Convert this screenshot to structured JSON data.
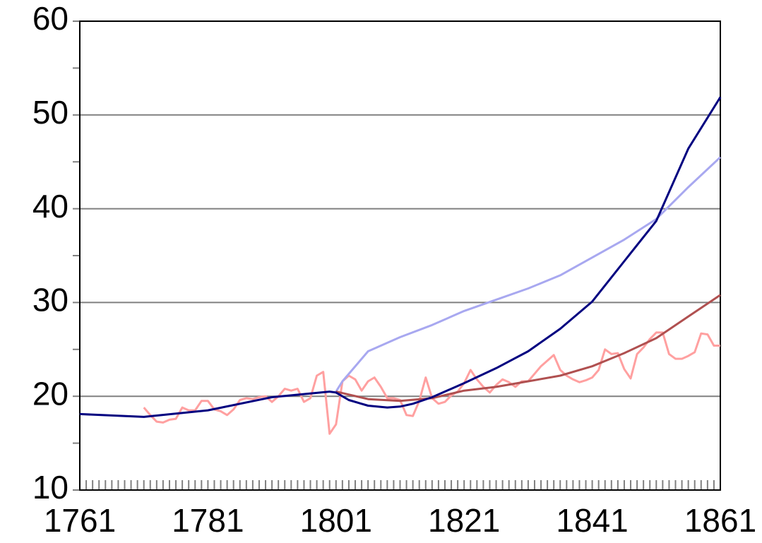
{
  "chart_data": {
    "type": "line",
    "xlim": [
      1761,
      1861
    ],
    "xticks": [
      1761,
      1781,
      1801,
      1821,
      1841,
      1861
    ],
    "xminor_ticks": [
      1761,
      1762,
      1763,
      1764,
      1765,
      1766,
      1767,
      1768,
      1769,
      1770,
      1771,
      1772,
      1773,
      1774,
      1775,
      1776,
      1777,
      1778,
      1779,
      1780,
      1781,
      1782,
      1783,
      1784,
      1785,
      1786,
      1787,
      1788,
      1789,
      1790,
      1791,
      1792,
      1793,
      1794,
      1795,
      1796,
      1797,
      1798,
      1799,
      1800,
      1801,
      1802,
      1803,
      1804,
      1805,
      1806,
      1807,
      1808,
      1809,
      1810,
      1811,
      1812,
      1813,
      1814,
      1815,
      1816,
      1817,
      1818,
      1819,
      1820,
      1821,
      1822,
      1823,
      1824,
      1825,
      1826,
      1827,
      1828,
      1829,
      1830,
      1831,
      1832,
      1833,
      1834,
      1835,
      1836,
      1837,
      1838,
      1839,
      1840,
      1841,
      1842,
      1843,
      1844,
      1845,
      1846,
      1847,
      1848,
      1849,
      1850,
      1851,
      1852,
      1853,
      1854,
      1855,
      1856,
      1857,
      1858,
      1859,
      1860,
      1861
    ],
    "ylim": [
      10,
      60
    ],
    "yticks": [
      10,
      20,
      30,
      40,
      50,
      60
    ],
    "yminor_ticks": [
      15,
      25,
      35,
      45,
      55
    ],
    "grid": true,
    "series": [
      {
        "color": "#ffa0a0",
        "x": [
          1771,
          1772,
          1773,
          1774,
          1775,
          1776,
          1777,
          1778,
          1779,
          1780,
          1781,
          1782,
          1783,
          1784,
          1785,
          1786,
          1787,
          1788,
          1789,
          1790,
          1791,
          1792,
          1793,
          1794,
          1795,
          1796,
          1797,
          1798,
          1799,
          1800,
          1801,
          1802,
          1803,
          1804,
          1805,
          1806,
          1807,
          1808,
          1809,
          1810,
          1811,
          1812,
          1813,
          1814,
          1815,
          1816,
          1817,
          1818,
          1819,
          1820,
          1821,
          1822,
          1823,
          1824,
          1825,
          1826,
          1827,
          1828,
          1829,
          1830,
          1831,
          1832,
          1833,
          1834,
          1835,
          1836,
          1837,
          1838,
          1839,
          1840,
          1841,
          1842,
          1843,
          1844,
          1845,
          1846,
          1847,
          1848,
          1849,
          1850,
          1851,
          1852,
          1853,
          1854,
          1855,
          1856,
          1857,
          1858,
          1859,
          1860,
          1861
        ],
        "values": [
          18.8,
          18.0,
          17.3,
          17.2,
          17.5,
          17.6,
          18.8,
          18.5,
          18.5,
          19.5,
          19.5,
          18.6,
          18.4,
          18.0,
          18.6,
          19.6,
          19.8,
          19.7,
          19.9,
          20.0,
          19.4,
          20.0,
          20.8,
          20.6,
          20.8,
          19.4,
          19.8,
          22.2,
          22.6,
          16.0,
          17.0,
          21.6,
          22.2,
          21.8,
          20.6,
          21.6,
          22.0,
          21.0,
          19.8,
          19.8,
          19.6,
          18.0,
          17.9,
          19.5,
          22.0,
          19.8,
          19.2,
          19.4,
          20.1,
          20.5,
          21.4,
          22.8,
          21.8,
          21.0,
          20.4,
          21.2,
          21.8,
          21.5,
          21.0,
          21.6,
          21.6,
          22.4,
          23.2,
          23.8,
          24.4,
          22.8,
          22.2,
          21.8,
          21.5,
          21.7,
          22.0,
          22.8,
          25.0,
          24.5,
          24.6,
          22.9,
          21.9,
          24.5,
          25.2,
          26.1,
          26.8,
          26.8,
          24.5,
          24.0,
          24.0,
          24.3,
          24.7,
          26.7,
          26.6,
          25.4,
          25.4
        ]
      },
      {
        "color": "#a8a8f0",
        "x": [
          1801,
          1802,
          1806,
          1811,
          1816,
          1821,
          1826,
          1831,
          1836,
          1841,
          1846,
          1851,
          1856,
          1861
        ],
        "values": [
          20.5,
          21.6,
          24.8,
          26.3,
          27.6,
          29.1,
          30.3,
          31.5,
          32.9,
          34.8,
          36.7,
          38.9,
          42.3,
          45.5
        ]
      },
      {
        "color": "#b05050",
        "x": [
          1801,
          1806,
          1811,
          1816,
          1821,
          1826,
          1831,
          1836,
          1841,
          1846,
          1851,
          1856,
          1861
        ],
        "values": [
          20.5,
          19.7,
          19.5,
          19.8,
          20.6,
          21.0,
          21.6,
          22.2,
          23.2,
          24.6,
          26.2,
          28.5,
          30.8
        ]
      },
      {
        "color": "#000080",
        "x": [
          1761,
          1771,
          1781,
          1791,
          1800,
          1801,
          1803,
          1806,
          1809,
          1811,
          1813,
          1816,
          1821,
          1826,
          1831,
          1836,
          1841,
          1846,
          1851,
          1856,
          1861
        ],
        "values": [
          18.1,
          17.8,
          18.5,
          19.9,
          20.5,
          20.4,
          19.6,
          19.0,
          18.8,
          18.9,
          19.2,
          19.9,
          21.4,
          23.0,
          24.8,
          27.2,
          30.1,
          34.4,
          38.7,
          46.4,
          51.9
        ]
      }
    ]
  }
}
